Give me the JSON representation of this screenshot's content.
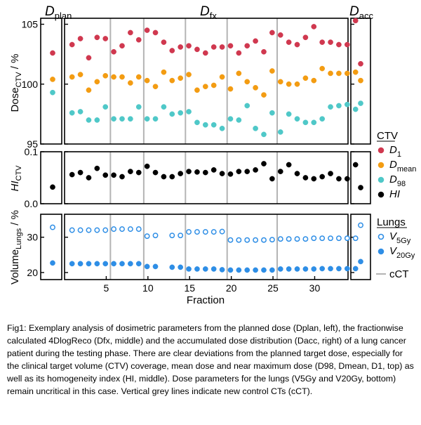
{
  "headers": {
    "plan": {
      "base": "D",
      "sub": "plan"
    },
    "fx": {
      "base": "D",
      "sub": "fx"
    },
    "acc": {
      "base": "D",
      "sub": "acc"
    }
  },
  "colors": {
    "D1": "#d0384f",
    "Dmean": "#f39c12",
    "D98": "#4fc8c8",
    "HI": "#000000",
    "V5Gy": "#2e8ee6",
    "V20Gy": "#2e8ee6",
    "cCT": "#b4b4b4"
  },
  "chart_data": [
    {
      "type": "scatter",
      "panel": "dose",
      "ylabel": {
        "base": "Dose",
        "sub": "CTV",
        "unit": " / %"
      },
      "ylim": [
        95,
        105.5
      ],
      "yticks": [
        95,
        100,
        105
      ],
      "xlim": [
        0,
        34
      ],
      "series": [
        {
          "key": "D1",
          "plan": 102.6,
          "acc": 101.7,
          "values": [
            103.3,
            103.8,
            102.2,
            103.9,
            103.8,
            102.7,
            103.2,
            104.3,
            103.7,
            104.5,
            104.3,
            103.5,
            102.8,
            103.1,
            103.2,
            102.9,
            102.6,
            103.1,
            103.1,
            103.2,
            102.6,
            103.2,
            103.6,
            102.7,
            104.3,
            104.1,
            103.5,
            103.3,
            103.9,
            104.8,
            103.5,
            103.5,
            103.3,
            103.3,
            105.3
          ]
        },
        {
          "key": "Dmean",
          "plan": 100.4,
          "acc": 100.3,
          "values": [
            100.6,
            100.8,
            99.5,
            100.2,
            100.7,
            100.6,
            100.6,
            100.1,
            100.6,
            100.3,
            99.8,
            101.0,
            100.3,
            100.5,
            100.8,
            99.5,
            99.8,
            99.9,
            100.6,
            99.6,
            100.9,
            100.2,
            99.7,
            99.1,
            101.1,
            100.2,
            100.0,
            100.0,
            100.5,
            100.3,
            101.3,
            100.9,
            100.9,
            100.9,
            101.0
          ]
        },
        {
          "key": "D98",
          "plan": 99.3,
          "acc": 98.4,
          "values": [
            97.6,
            97.7,
            97.0,
            97.0,
            98.1,
            97.1,
            97.1,
            97.1,
            98.1,
            97.1,
            97.1,
            98.1,
            97.5,
            97.6,
            97.7,
            96.8,
            96.6,
            96.6,
            96.3,
            97.1,
            97.0,
            98.2,
            96.3,
            95.8,
            97.6,
            96.0,
            97.5,
            97.1,
            96.8,
            96.8,
            97.1,
            98.1,
            98.2,
            98.3,
            97.9
          ]
        }
      ]
    },
    {
      "type": "scatter",
      "panel": "hi",
      "ylabel": {
        "base": "HI",
        "sub": "CTV"
      },
      "ylim": [
        0.0,
        0.1
      ],
      "yticks": [
        0.0,
        0.1
      ],
      "ytick_labels": [
        "0.0",
        "0.1"
      ],
      "series": [
        {
          "key": "HI",
          "plan": 0.032,
          "acc": 0.031,
          "values": [
            0.056,
            0.06,
            0.05,
            0.068,
            0.055,
            0.055,
            0.052,
            0.062,
            0.06,
            0.072,
            0.06,
            0.052,
            0.052,
            0.058,
            0.062,
            0.061,
            0.06,
            0.065,
            0.058,
            0.057,
            0.062,
            0.062,
            0.065,
            0.077,
            0.048,
            0.062,
            0.075,
            0.058,
            0.05,
            0.048,
            0.052,
            0.058,
            0.048,
            0.048,
            0.075
          ]
        }
      ]
    },
    {
      "type": "scatter",
      "panel": "lungs",
      "ylabel": {
        "base": "Volume",
        "sub": "Lungs",
        "unit": " / %"
      },
      "ylim": [
        18,
        36.5
      ],
      "yticks": [
        20,
        30
      ],
      "xlabel": "Fraction",
      "xticks": [
        5,
        10,
        15,
        20,
        25,
        30
      ],
      "series": [
        {
          "key": "V5Gy",
          "hollow": true,
          "plan": 32.8,
          "acc": 33.4,
          "values": [
            32.0,
            32.0,
            32.0,
            32.0,
            32.0,
            32.3,
            32.3,
            32.3,
            32.3,
            30.3,
            30.5,
            null,
            30.5,
            30.5,
            31.5,
            31.5,
            31.5,
            31.5,
            31.6,
            29.2,
            29.2,
            29.2,
            29.2,
            29.2,
            29.3,
            29.5,
            29.5,
            29.5,
            29.5,
            29.7,
            29.7,
            29.7,
            29.7,
            29.7,
            29.7
          ]
        },
        {
          "key": "V20Gy",
          "hollow": false,
          "plan": 22.7,
          "acc": 23.1,
          "values": [
            22.5,
            22.5,
            22.5,
            22.5,
            22.5,
            22.5,
            22.5,
            22.5,
            22.5,
            21.7,
            21.7,
            null,
            21.5,
            21.5,
            21.0,
            21.0,
            21.0,
            21.0,
            20.8,
            20.7,
            20.7,
            20.7,
            20.7,
            20.7,
            20.7,
            21.0,
            21.0,
            21.0,
            21.0,
            21.0,
            21.1,
            21.1,
            21.1,
            21.1,
            21.1
          ]
        }
      ]
    }
  ],
  "fraction_x": [
    0.9,
    1.9,
    2.9,
    3.9,
    4.9,
    5.9,
    6.9,
    7.9,
    8.9,
    9.9,
    10.9,
    11.9,
    12.9,
    13.9,
    14.9,
    15.9,
    16.9,
    17.9,
    18.9,
    19.9,
    20.9,
    21.9,
    22.9,
    23.9,
    24.9,
    25.9,
    26.9,
    27.9,
    28.9,
    29.9,
    30.9,
    31.9,
    32.9,
    33.9,
    34.9
  ],
  "cct_lines": [
    5.5,
    9.5,
    14.5,
    19.5,
    25.5
  ],
  "legend": {
    "ctv_title": "CTV",
    "ctv_items": [
      {
        "key": "D1",
        "base": "D",
        "sub": "1",
        "italic": true
      },
      {
        "key": "Dmean",
        "base": "D",
        "sub": "mean",
        "italic": true
      },
      {
        "key": "D98",
        "base": "D",
        "sub": "98",
        "italic": true
      },
      {
        "key": "HI",
        "base": "HI",
        "sub": "",
        "italic": true
      }
    ],
    "lungs_title": "Lungs",
    "lungs_items": [
      {
        "key": "V5Gy",
        "base": "V",
        "sub": "5Gy",
        "italic": true,
        "hollow": true
      },
      {
        "key": "V20Gy",
        "base": "V",
        "sub": "20Gy",
        "italic": true,
        "hollow": false
      }
    ],
    "cct_label": "cCT"
  },
  "caption": "Fig1: Exemplary analysis of dosimetric parameters from the planned dose (Dplan, left), the fractionwise calculated 4DlogReco (Dfx, middle) and the accumulated dose distribution (Dacc, right) of a lung cancer patient during the testing phase. There are clear deviations from the planned target dose, especially for the clinical target volume (CTV) coverage, mean dose and near maximum dose (D98, Dmean, D1, top) as well as its homogeneity index (HI, middle). Dose parameters for the lungs (V5Gy and V20Gy, bottom) remain uncritical in this case. Vertical grey lines indicate new control CTs (cCT)."
}
